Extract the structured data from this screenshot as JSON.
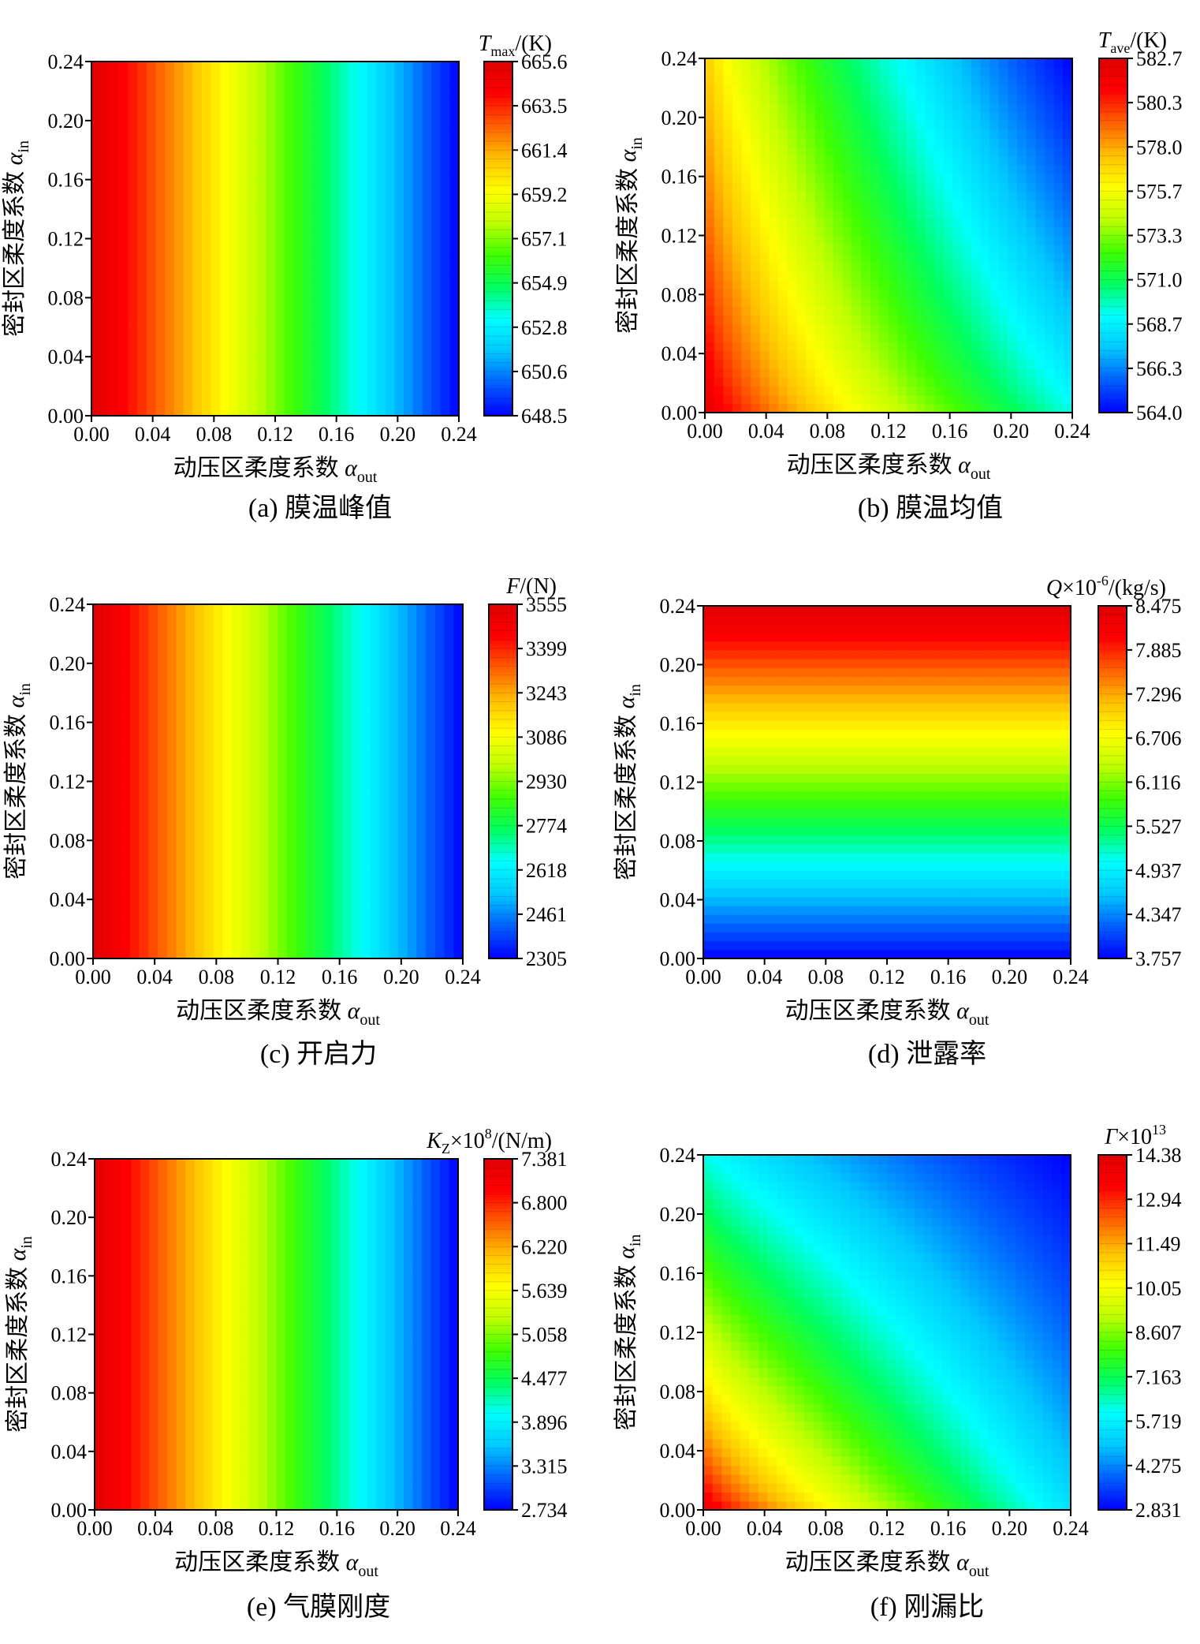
{
  "panels": [
    {
      "chart_data": {
        "type": "heatmap",
        "title": "",
        "caption": "(a) 膜温峰值",
        "xlabel": "动压区柔度系数 αout",
        "ylabel": "密封区柔度系数 αin",
        "colorbar_title": "Tmax/(K)",
        "x_ticks": [
          "0.00",
          "0.04",
          "0.08",
          "0.12",
          "0.16",
          "0.20",
          "0.24"
        ],
        "y_ticks": [
          "0.00",
          "0.04",
          "0.08",
          "0.12",
          "0.16",
          "0.20",
          "0.24"
        ],
        "xlim": [
          0,
          0.24
        ],
        "ylim": [
          0,
          0.24
        ],
        "colorbar_ticks": [
          "665.6",
          "663.5",
          "661.4",
          "659.2",
          "657.1",
          "654.9",
          "652.8",
          "650.6",
          "648.5"
        ],
        "zlim": [
          648.5,
          665.6
        ],
        "field": "x_only",
        "z_at_corners": {
          "x0_y0": 665.6,
          "x1_y0": 648.5,
          "x0_y1": 665.6,
          "x1_y1": 648.5
        }
      }
    },
    {
      "chart_data": {
        "type": "heatmap",
        "title": "",
        "caption": "(b) 膜温均值",
        "xlabel": "动压区柔度系数 αout",
        "ylabel": "密封区柔度系数 αin",
        "colorbar_title": "Tave/(K)",
        "x_ticks": [
          "0.00",
          "0.04",
          "0.08",
          "0.12",
          "0.16",
          "0.20",
          "0.24"
        ],
        "y_ticks": [
          "0.00",
          "0.04",
          "0.08",
          "0.12",
          "0.16",
          "0.20",
          "0.24"
        ],
        "xlim": [
          0,
          0.24
        ],
        "ylim": [
          0,
          0.24
        ],
        "colorbar_ticks": [
          "582.7",
          "580.3",
          "578.0",
          "575.7",
          "573.3",
          "571.0",
          "568.7",
          "566.3",
          "564.0"
        ],
        "zlim": [
          564.0,
          582.7
        ],
        "field": "x_and_y",
        "z_at_corners": {
          "x0_y0": 582.7,
          "x1_y0": 569.5,
          "x0_y1": 577.5,
          "x1_y1": 564.0
        }
      }
    },
    {
      "chart_data": {
        "type": "heatmap",
        "title": "",
        "caption": "(c) 开启力",
        "xlabel": "动压区柔度系数 αout",
        "ylabel": "密封区柔度系数 αin",
        "colorbar_title": "F/(N)",
        "x_ticks": [
          "0.00",
          "0.04",
          "0.08",
          "0.12",
          "0.16",
          "0.20",
          "0.24"
        ],
        "y_ticks": [
          "0.00",
          "0.04",
          "0.08",
          "0.12",
          "0.16",
          "0.20",
          "0.24"
        ],
        "xlim": [
          0,
          0.24
        ],
        "ylim": [
          0,
          0.24
        ],
        "colorbar_ticks": [
          "3555",
          "3399",
          "3243",
          "3086",
          "2930",
          "2774",
          "2618",
          "2461",
          "2305"
        ],
        "zlim": [
          2305,
          3555
        ],
        "field": "x_only",
        "z_at_corners": {
          "x0_y0": 3555,
          "x1_y0": 2305,
          "x0_y1": 3555,
          "x1_y1": 2305
        }
      }
    },
    {
      "chart_data": {
        "type": "heatmap",
        "title": "",
        "caption": "(d) 泄露率",
        "xlabel": "动压区柔度系数 αout",
        "ylabel": "密封区柔度系数 αin",
        "colorbar_title": "Q×10-6/(kg/s)",
        "x_ticks": [
          "0.00",
          "0.04",
          "0.08",
          "0.12",
          "0.16",
          "0.20",
          "0.24"
        ],
        "y_ticks": [
          "0.00",
          "0.04",
          "0.08",
          "0.12",
          "0.16",
          "0.20",
          "0.24"
        ],
        "xlim": [
          0,
          0.24
        ],
        "ylim": [
          0,
          0.24
        ],
        "colorbar_ticks": [
          "8.475",
          "7.885",
          "7.296",
          "6.706",
          "6.116",
          "5.527",
          "4.937",
          "4.347",
          "3.757"
        ],
        "zlim": [
          3.757,
          8.475
        ],
        "field": "y_only",
        "z_at_corners": {
          "x0_y0": 3.757,
          "x1_y0": 3.757,
          "x0_y1": 8.475,
          "x1_y1": 8.475
        }
      }
    },
    {
      "chart_data": {
        "type": "heatmap",
        "title": "",
        "caption": "(e) 气膜刚度",
        "xlabel": "动压区柔度系数 αout",
        "ylabel": "密封区柔度系数 αin",
        "colorbar_title": "KZ×108/(N/m)",
        "x_ticks": [
          "0.00",
          "0.04",
          "0.08",
          "0.12",
          "0.16",
          "0.20",
          "0.24"
        ],
        "y_ticks": [
          "0.00",
          "0.04",
          "0.08",
          "0.12",
          "0.16",
          "0.20",
          "0.24"
        ],
        "xlim": [
          0,
          0.24
        ],
        "ylim": [
          0,
          0.24
        ],
        "colorbar_ticks": [
          "7.381",
          "6.800",
          "6.220",
          "5.639",
          "5.058",
          "4.477",
          "3.896",
          "3.315",
          "2.734"
        ],
        "zlim": [
          2.734,
          7.381
        ],
        "field": "x_only",
        "z_at_corners": {
          "x0_y0": 7.381,
          "x1_y0": 2.734,
          "x0_y1": 7.381,
          "x1_y1": 2.734
        }
      }
    },
    {
      "chart_data": {
        "type": "heatmap",
        "title": "",
        "caption": "(f) 刚漏比",
        "xlabel": "动压区柔度系数 αout",
        "ylabel": "密封区柔度系数 αin",
        "colorbar_title": "Γ×1013",
        "x_ticks": [
          "0.00",
          "0.04",
          "0.08",
          "0.12",
          "0.16",
          "0.20",
          "0.24"
        ],
        "y_ticks": [
          "0.00",
          "0.04",
          "0.08",
          "0.12",
          "0.16",
          "0.20",
          "0.24"
        ],
        "xlim": [
          0,
          0.24
        ],
        "ylim": [
          0,
          0.24
        ],
        "colorbar_ticks": [
          "14.38",
          "12.94",
          "11.49",
          "10.05",
          "8.607",
          "7.163",
          "5.719",
          "4.275",
          "2.831"
        ],
        "zlim": [
          2.831,
          14.38
        ],
        "field": "x_and_y",
        "z_at_corners": {
          "x0_y0": 14.38,
          "x1_y0": 5.5,
          "x0_y1": 6.2,
          "x1_y1": 2.831
        }
      }
    }
  ],
  "text": {
    "x_main": "动压区柔度系数 ",
    "x_sym": "α",
    "x_sub": "out",
    "y_main": "密封区柔度系数 ",
    "y_sym": "α",
    "y_sub": "in",
    "cb": [
      {
        "sym": "T",
        "sub": "max",
        "sup": "",
        "mid": "",
        "unit": "/(K)"
      },
      {
        "sym": "T",
        "sub": "ave",
        "sup": "",
        "mid": "",
        "unit": "/(K)"
      },
      {
        "sym": "F",
        "sub": "",
        "sup": "",
        "mid": "",
        "unit": "/(N)"
      },
      {
        "sym": "Q",
        "sub": "",
        "sup": "-6",
        "mid": "×10",
        "unit": "/(kg/s)"
      },
      {
        "sym": "K",
        "sub": "Z",
        "sup": "8",
        "mid": "×10",
        "unit": "/(N/m)"
      },
      {
        "sym": "Γ",
        "sub": "",
        "sup": "13",
        "mid": "×10",
        "unit": ""
      }
    ]
  },
  "colors": {
    "jet": [
      "#0000ff",
      "#0060ff",
      "#00c8ff",
      "#00ffff",
      "#00ff60",
      "#40ff00",
      "#c0ff00",
      "#ffff00",
      "#ffc000",
      "#ff6000",
      "#ff0000",
      "#e00000"
    ]
  }
}
